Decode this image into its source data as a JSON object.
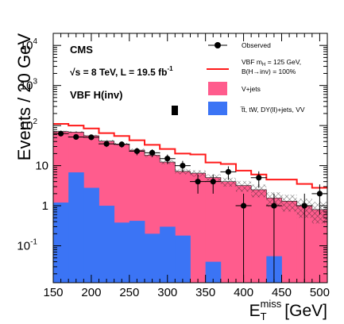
{
  "chart_data": {
    "type": "bar",
    "experiment_label": "CMS",
    "energy_label": "√s = 8 TeV, L = 19.5 fb",
    "lumi_unit_superscript": "-1",
    "analysis_label": "VBF H(inv)",
    "xlabel_main": "E",
    "xlabel_sup": "miss",
    "xlabel_sub": "T",
    "xlabel_unit": "[GeV]",
    "ylabel": "Events / 20 GeV",
    "y_scale": "log",
    "xlim": [
      150,
      510
    ],
    "ylim": [
      0.012,
      20000
    ],
    "x_ticks": [
      150,
      200,
      250,
      300,
      350,
      400,
      450,
      500
    ],
    "y_ticks": [
      {
        "value": 0.1,
        "base": "10",
        "exp": "-1"
      },
      {
        "value": 1,
        "base": "1",
        "exp": ""
      },
      {
        "value": 10,
        "base": "10",
        "exp": ""
      },
      {
        "value": 100,
        "base": "10",
        "exp": "2"
      },
      {
        "value": 1000,
        "base": "10",
        "exp": "3"
      },
      {
        "value": 10000,
        "base": "10",
        "exp": "4"
      }
    ],
    "bin_edges": [
      150,
      170,
      190,
      210,
      230,
      250,
      270,
      290,
      310,
      330,
      350,
      370,
      390,
      410,
      430,
      450,
      470,
      490,
      510
    ],
    "series": [
      {
        "name": "V+jets",
        "kind": "stack",
        "color": "#ff5c8d",
        "values": [
          70,
          62,
          53,
          40,
          34,
          24,
          18,
          12,
          7,
          6.5,
          5,
          4,
          3.2,
          2.5,
          1.5,
          1.3,
          1.0,
          0.8
        ]
      },
      {
        "name": "t̅t, tW, DY(ll)+jets, VV",
        "kind": "stack",
        "color": "#3b74f5",
        "values": [
          1.2,
          6.8,
          2.8,
          1.0,
          0.38,
          0.42,
          0.2,
          0.3,
          0.18,
          0.0,
          0.04,
          0.0,
          0.0,
          0.0,
          0.055,
          0.0,
          0.0,
          0.0
        ]
      },
      {
        "name": "VBF m_H = 125 GeV, B(H→inv) = 100%",
        "kind": "step",
        "color": "#ff1a1a",
        "values": [
          110,
          100,
          85,
          65,
          55,
          43,
          33,
          26,
          20,
          19,
          12,
          11,
          7.5,
          6,
          4.5,
          4.5,
          3.5,
          2.8
        ]
      },
      {
        "name": "Observed",
        "kind": "points",
        "color": "#000000",
        "x": [
          160,
          180,
          200,
          220,
          240,
          260,
          280,
          300,
          320,
          340,
          360,
          380,
          400,
          420,
          440,
          460,
          480,
          500
        ],
        "values": [
          63,
          52,
          51,
          35,
          34,
          23,
          21,
          15,
          10,
          4,
          4,
          7,
          1,
          5,
          1,
          0,
          1,
          2
        ],
        "err_low": [
          8,
          7.2,
          7.1,
          5.9,
          5.8,
          4.8,
          4.6,
          3.9,
          3.1,
          2.0,
          2.0,
          2.6,
          0.99,
          2.2,
          0.99,
          0,
          0.99,
          1.4
        ],
        "err_high": [
          8,
          7.2,
          7.1,
          5.9,
          5.8,
          4.8,
          4.6,
          3.9,
          3.1,
          2.0,
          2.0,
          2.6,
          1.0,
          2.2,
          1.0,
          0,
          1.0,
          1.4
        ]
      }
    ],
    "uncertainty_fraction": [
      0.05,
      0.05,
      0.05,
      0.06,
      0.07,
      0.08,
      0.1,
      0.12,
      0.15,
      0.18,
      0.2,
      0.25,
      0.3,
      0.35,
      0.4,
      0.45,
      0.5,
      0.55
    ],
    "legend": {
      "placement": "top-right",
      "observed": "Observed",
      "signal_line1": "VBF m",
      "signal_sub": "H",
      "signal_line1_rest": " = 125 GeV,",
      "signal_line2": "B(H→inv) = 100%",
      "vjets": "V+jets",
      "other": "t̅t, tW, DY(ll)+jets, VV"
    },
    "grid": false
  }
}
